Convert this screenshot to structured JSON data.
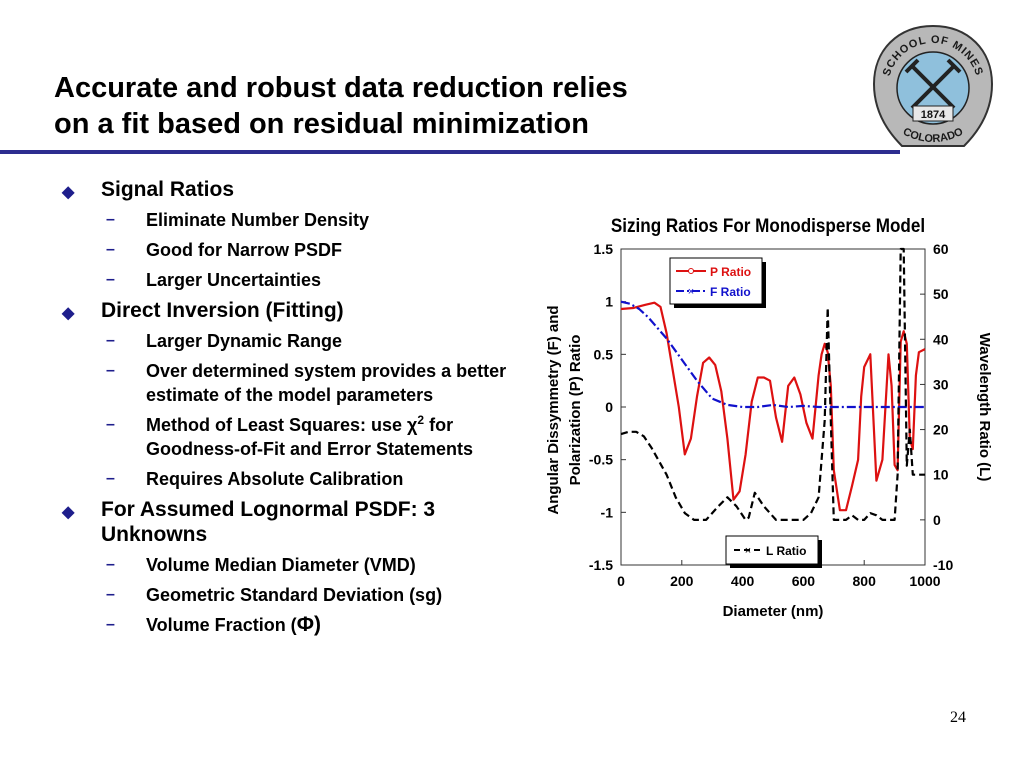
{
  "slide": {
    "title_line1": "Accurate and robust data reduction relies",
    "title_line2": "on a fit based on residual minimization",
    "page_number": "24"
  },
  "logo": {
    "top_text": "SCHOOL OF MINES",
    "bottom_text": "COLORADO",
    "year": "1874"
  },
  "bullets": [
    {
      "text": "Signal Ratios",
      "children": [
        {
          "text": "Eliminate Number Density"
        },
        {
          "text": "Good for Narrow PSDF"
        },
        {
          "text": "Larger Uncertainties"
        }
      ]
    },
    {
      "text": "Direct Inversion (Fitting)",
      "children": [
        {
          "text": "Larger Dynamic Range"
        },
        {
          "text": "Over determined system provides a better estimate of the model parameters"
        },
        {
          "text_before": "Method of Least Squares: use χ",
          "superscript": "2",
          "text_after": "for Goodness-of-Fit and Error Statements"
        },
        {
          "text": "Requires Absolute Calibration"
        }
      ]
    },
    {
      "text": "For Assumed Lognormal PSDF:  3 Unknowns",
      "children": [
        {
          "text": "Volume Median Diameter (VMD)"
        },
        {
          "text": "Geometric Standard Deviation (sg)"
        },
        {
          "text_before": "Volume Fraction (",
          "symbol": "Φ",
          "text_after": ")"
        }
      ]
    }
  ],
  "chart_data": {
    "type": "line",
    "title": "Sizing Ratios For Monodisperse Model",
    "xlabel": "Diameter (nm)",
    "ylabel_left_line1": "Angular Dissymmetry (F)  and",
    "ylabel_left_line2": "Polarization (P)  Ratio",
    "ylabel_right": "Wavelength Ratio (L)",
    "xlim": [
      0,
      1000
    ],
    "ylim_left": [
      -1.5,
      1.5
    ],
    "ylim_right": [
      -10,
      60
    ],
    "xticks": [
      0,
      200,
      400,
      600,
      800,
      1000
    ],
    "yticks_left": [
      -1.5,
      -1,
      -0.5,
      0,
      0.5,
      1,
      1.5
    ],
    "yticks_right": [
      -10,
      0,
      10,
      20,
      30,
      40,
      50,
      60
    ],
    "legend_top": "top-center",
    "legend_bottom": "bottom-center",
    "series": [
      {
        "name": "P Ratio",
        "axis": "left",
        "color": "#dd1111",
        "style": "solid",
        "x": [
          0,
          40,
          80,
          110,
          130,
          150,
          170,
          190,
          210,
          230,
          250,
          270,
          290,
          310,
          330,
          350,
          370,
          390,
          410,
          430,
          450,
          470,
          490,
          510,
          530,
          550,
          570,
          590,
          610,
          630,
          650,
          660,
          670,
          680,
          690,
          700,
          720,
          740,
          760,
          780,
          790,
          800,
          820,
          840,
          860,
          880,
          890,
          900,
          910,
          920,
          930,
          940,
          950,
          960,
          970,
          980,
          1000
        ],
        "y": [
          0.93,
          0.94,
          0.97,
          0.99,
          0.95,
          0.7,
          0.35,
          0.0,
          -0.45,
          -0.3,
          0.1,
          0.42,
          0.47,
          0.4,
          0.15,
          -0.3,
          -0.88,
          -0.8,
          -0.45,
          0.05,
          0.28,
          0.28,
          0.25,
          -0.1,
          -0.33,
          0.2,
          0.28,
          0.12,
          -0.15,
          -0.3,
          0.3,
          0.5,
          0.6,
          0.52,
          0.2,
          -0.6,
          -0.98,
          -0.98,
          -0.75,
          -0.5,
          0.1,
          0.38,
          0.5,
          -0.7,
          -0.5,
          0.5,
          0.2,
          -0.55,
          -0.6,
          0.62,
          0.72,
          0.6,
          -0.3,
          -0.4,
          0.3,
          0.52,
          0.55
        ]
      },
      {
        "name": "F Ratio",
        "axis": "left",
        "color": "#1111cc",
        "style": "dash-dot",
        "x": [
          0,
          30,
          60,
          90,
          120,
          150,
          200,
          250,
          300,
          350,
          400,
          450,
          500,
          550,
          600,
          650,
          700,
          750,
          800,
          850,
          900,
          950,
          1000
        ],
        "y": [
          1.0,
          0.98,
          0.93,
          0.85,
          0.75,
          0.65,
          0.45,
          0.25,
          0.08,
          0.02,
          0.0,
          0.0,
          0.02,
          0.0,
          0.01,
          0.0,
          0.0,
          0.0,
          0.0,
          0.0,
          0.0,
          0.0,
          0.0
        ]
      },
      {
        "name": "L Ratio",
        "axis": "right",
        "color": "#000000",
        "style": "dashed",
        "x": [
          0,
          25,
          50,
          75,
          100,
          150,
          180,
          210,
          240,
          280,
          320,
          350,
          380,
          410,
          420,
          440,
          470,
          510,
          550,
          600,
          625,
          650,
          670,
          680,
          690,
          700,
          720,
          740,
          760,
          780,
          800,
          820,
          840,
          860,
          880,
          900,
          910,
          920,
          930,
          940,
          950,
          960,
          1000
        ],
        "y": [
          19,
          19.5,
          19.5,
          18.5,
          16,
          10,
          5,
          1.5,
          0,
          0,
          3,
          5,
          3,
          0,
          0.5,
          6,
          3,
          0,
          0,
          0,
          1.5,
          5,
          22,
          47,
          22,
          0,
          0,
          0,
          1,
          0,
          0,
          1.5,
          1,
          0,
          0,
          0,
          10,
          60,
          62,
          12,
          20,
          10,
          10
        ]
      }
    ]
  }
}
